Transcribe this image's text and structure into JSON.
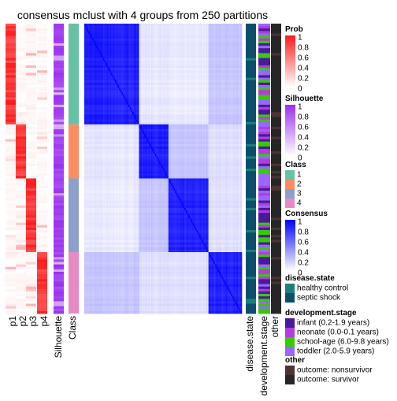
{
  "chart_data": {
    "type": "heatmap",
    "title": "consensus mclust with 4 groups from 250 partitions",
    "n_groups": 4,
    "class_sizes": [
      41,
      22,
      30,
      25
    ],
    "column_labels": {
      "prob": [
        "p1",
        "p2",
        "p3",
        "p4"
      ],
      "silhouette": "Silhouette",
      "class": "Class",
      "annotations": [
        "disease.state",
        "development.stage",
        "other"
      ]
    },
    "legends": [
      {
        "key": "prob",
        "title": "Prob",
        "type": "continuous",
        "ticks": [
          "1",
          "0.8",
          "0.6",
          "0.4",
          "0.2",
          "0"
        ],
        "color_high": "#ff1a1a",
        "color_low": "#ffffff"
      },
      {
        "key": "silhouette",
        "title": "Silhouette",
        "type": "continuous",
        "ticks": [
          "1",
          "0.8",
          "0.6",
          "0.4",
          "0.2",
          "0"
        ],
        "color_high": "#9b30f0",
        "color_low": "#ffffff"
      },
      {
        "key": "class",
        "title": "Class",
        "type": "discrete",
        "items": [
          {
            "label": "1",
            "color": "#66c2a5"
          },
          {
            "label": "2",
            "color": "#fc8d62"
          },
          {
            "label": "3",
            "color": "#8da0cb"
          },
          {
            "label": "4",
            "color": "#e78ac3"
          }
        ]
      },
      {
        "key": "consensus",
        "title": "Consensus",
        "type": "continuous",
        "ticks": [
          "1",
          "0.8",
          "0.6",
          "0.4",
          "0.2",
          "0"
        ],
        "color_high": "#0000ff",
        "color_low": "#ffffff"
      },
      {
        "key": "disease",
        "title": "disease.state",
        "type": "discrete",
        "items": [
          {
            "label": "healthy control",
            "color": "#1b7f7a"
          },
          {
            "label": "septic shock",
            "color": "#0b4f6c"
          }
        ]
      },
      {
        "key": "devstage",
        "title": "development.stage",
        "type": "discrete",
        "items": [
          {
            "label": "infant (0.2-1.9 years)",
            "color": "#4a1a9c"
          },
          {
            "label": "neonate (0.0-0.1 years)",
            "color": "#b43be0"
          },
          {
            "label": "school-age (6.0-9.8 years)",
            "color": "#33cc00"
          },
          {
            "label": "toddler (2.0-5.9 years)",
            "color": "#9966ff"
          }
        ]
      },
      {
        "key": "other",
        "title": "other",
        "type": "discrete",
        "items": [
          {
            "label": "outcome: nonsurvivor",
            "color": "#4d3333"
          },
          {
            "label": "outcome: survivor",
            "color": "#262626"
          }
        ]
      }
    ]
  }
}
